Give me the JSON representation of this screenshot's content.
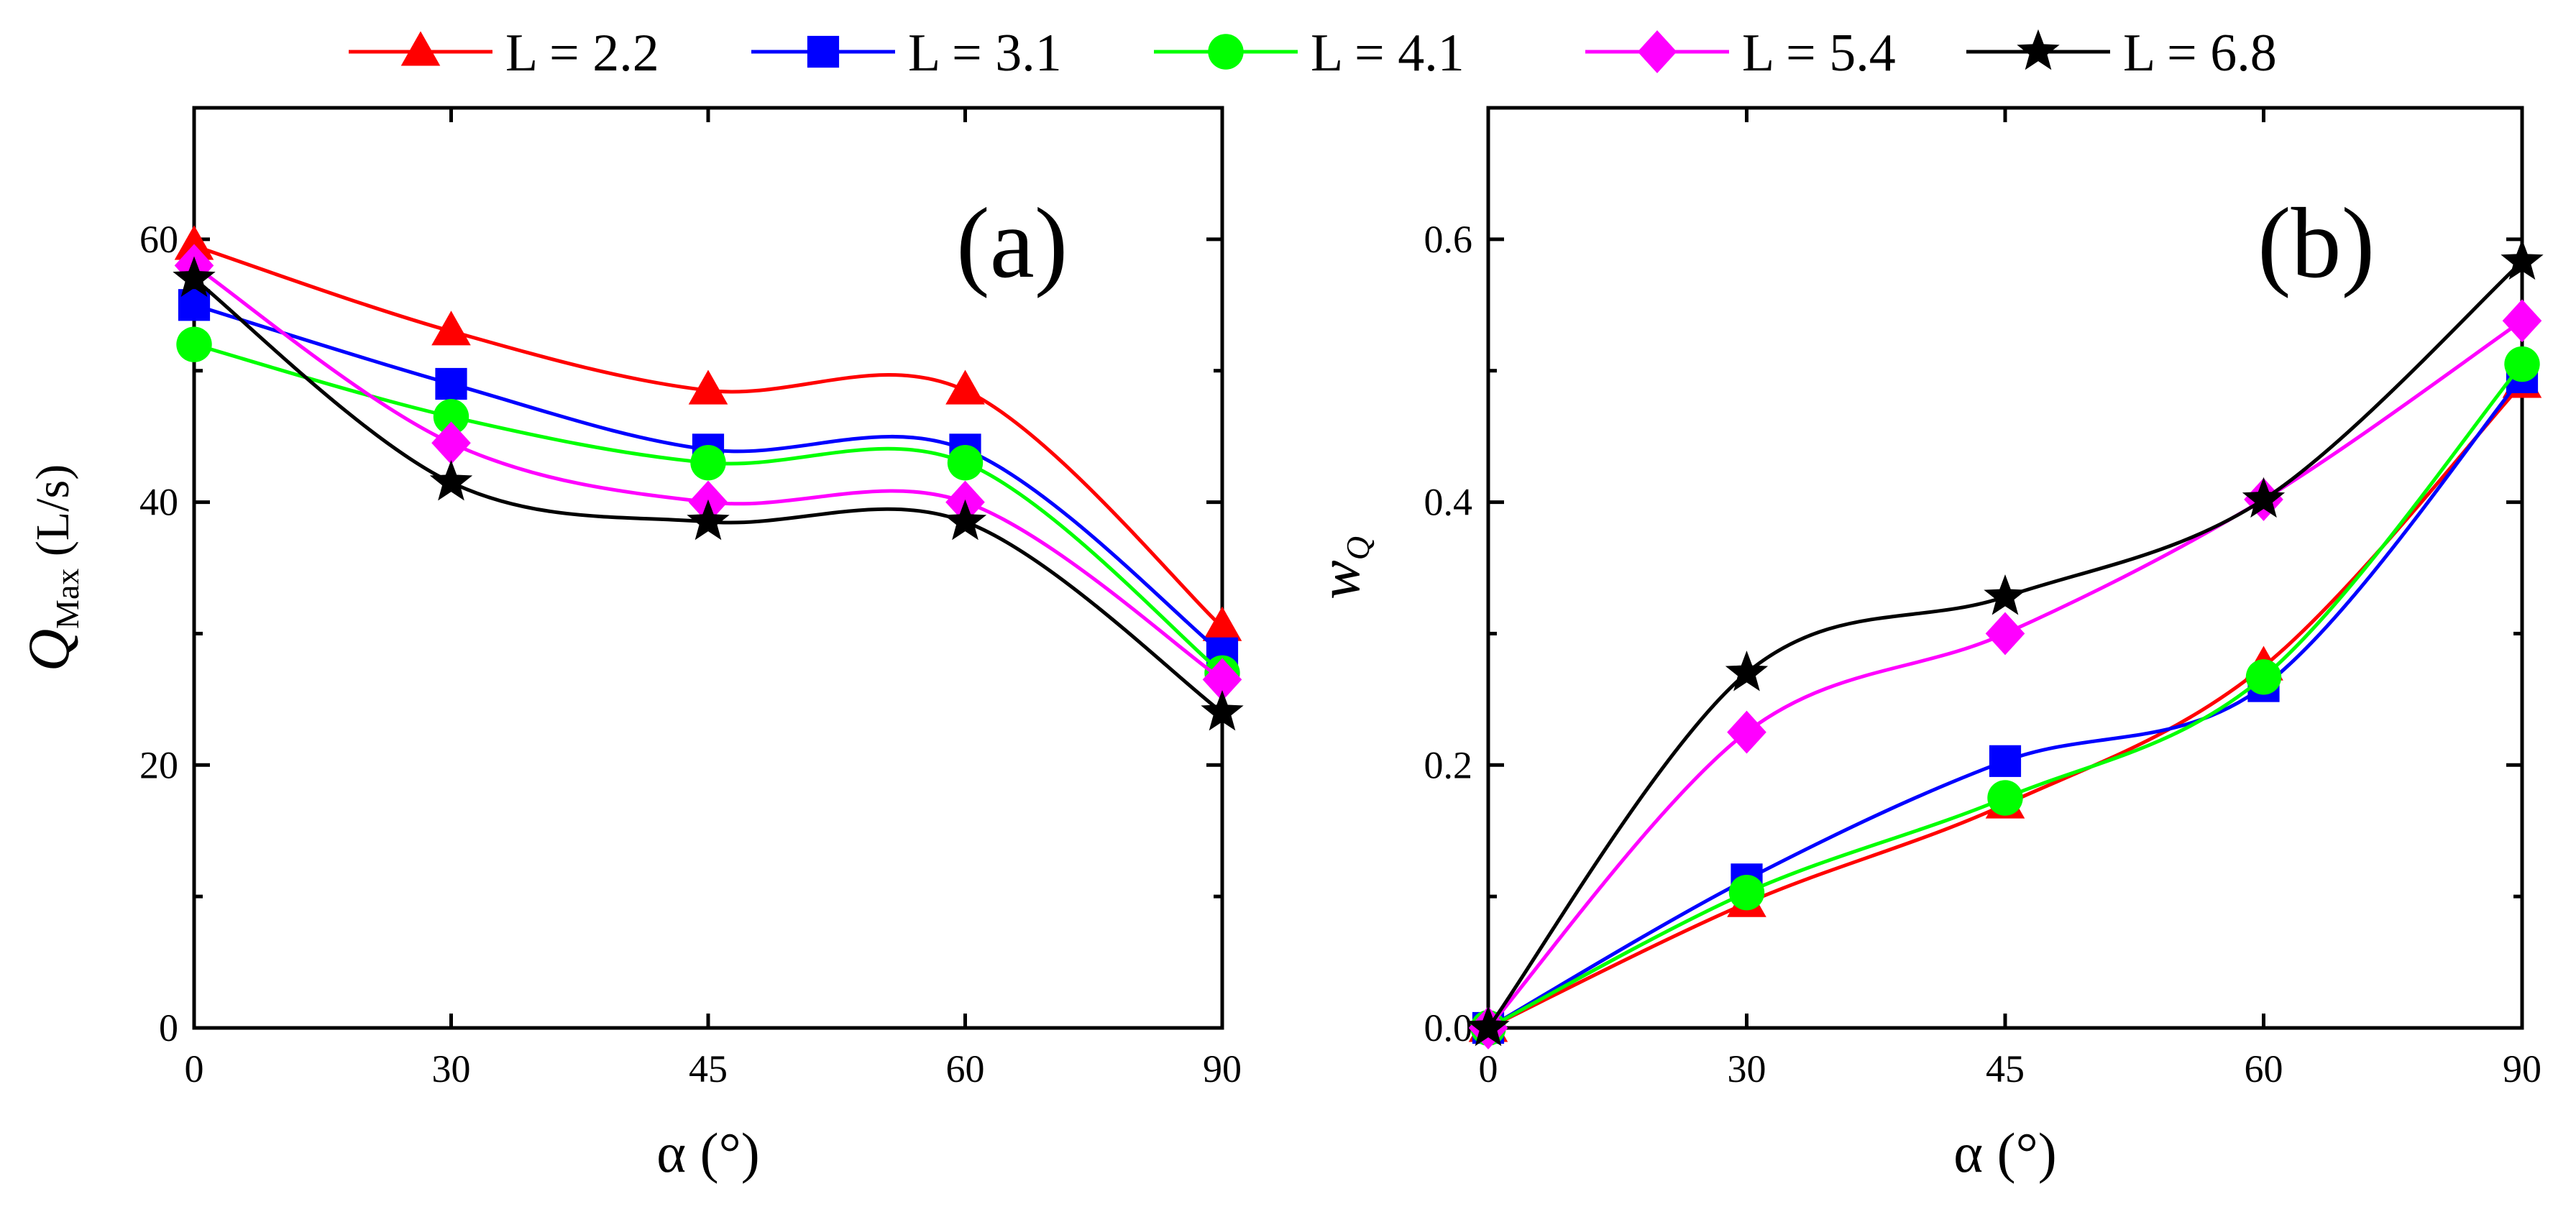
{
  "legend": {
    "entries": [
      {
        "label": "L = 2.2",
        "color": "#ff0000",
        "marker": "triangle"
      },
      {
        "label": "L = 3.1",
        "color": "#0000ff",
        "marker": "square"
      },
      {
        "label": "L = 4.1",
        "color": "#00ff00",
        "marker": "circle"
      },
      {
        "label": "L = 5.4",
        "color": "#ff00ff",
        "marker": "diamond"
      },
      {
        "label": "L = 6.8",
        "color": "#000000",
        "marker": "star"
      }
    ]
  },
  "chart_data": [
    {
      "type": "line",
      "panel_label": "(a)",
      "xlabel": "α (°)",
      "ylabel_main": "Q",
      "ylabel_sub": "Max",
      "ylabel_unit": " (L/s)",
      "x_categories": [
        "0",
        "30",
        "45",
        "60",
        "90"
      ],
      "ylim": [
        0,
        70
      ],
      "y_ticks": [
        0,
        20,
        40,
        60
      ],
      "y_tick_labels": [
        "0",
        "20",
        "40",
        "60"
      ],
      "series": [
        {
          "name": "L = 2.2",
          "values": [
            59.5,
            53,
            48.5,
            48.5,
            30.5
          ]
        },
        {
          "name": "L = 3.1",
          "values": [
            55,
            49,
            44,
            44,
            28.5
          ]
        },
        {
          "name": "L = 4.1",
          "values": [
            52,
            46.5,
            43,
            43,
            27
          ]
        },
        {
          "name": "L = 5.4",
          "values": [
            58,
            44.5,
            40,
            40,
            26.5
          ]
        },
        {
          "name": "L = 6.8",
          "values": [
            57,
            41.5,
            38.5,
            38.5,
            24
          ]
        }
      ]
    },
    {
      "type": "line",
      "panel_label": "(b)",
      "xlabel": "α (°)",
      "ylabel_main": "w",
      "ylabel_sub": "Q",
      "ylabel_unit": "",
      "x_categories": [
        "0",
        "30",
        "45",
        "60",
        "90"
      ],
      "ylim": [
        0,
        0.7
      ],
      "y_ticks": [
        0,
        0.2,
        0.4,
        0.6
      ],
      "y_tick_labels": [
        "0.0",
        "0.2",
        "0.4",
        "0.6"
      ],
      "series": [
        {
          "name": "L = 2.2",
          "values": [
            0,
            0.095,
            0.17,
            0.275,
            0.49
          ]
        },
        {
          "name": "L = 3.1",
          "values": [
            0,
            0.113,
            0.203,
            0.26,
            0.495
          ]
        },
        {
          "name": "L = 4.1",
          "values": [
            0,
            0.103,
            0.175,
            0.267,
            0.505
          ]
        },
        {
          "name": "L = 5.4",
          "values": [
            0,
            0.225,
            0.3,
            0.402,
            0.538
          ]
        },
        {
          "name": "L = 6.8",
          "values": [
            0,
            0.27,
            0.328,
            0.402,
            0.583
          ]
        }
      ]
    }
  ]
}
